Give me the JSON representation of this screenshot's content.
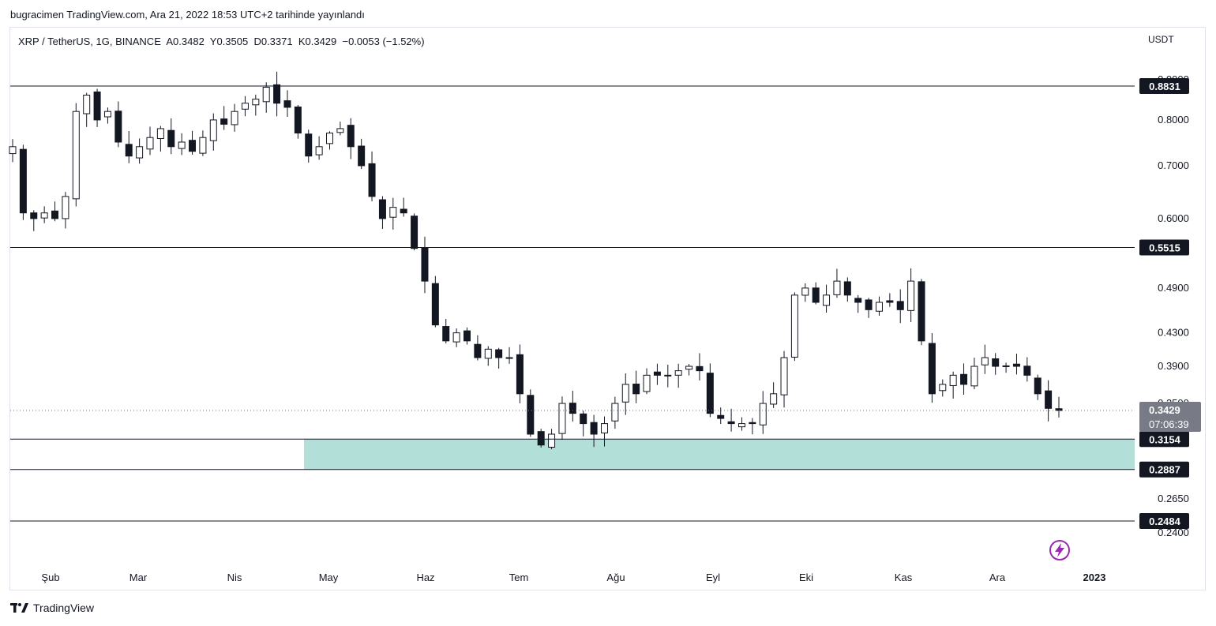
{
  "header": {
    "published": "bugracimen TradingView.com, Ara 21, 2022 18:53 UTC+2 tarihinde yayınlandı",
    "symbol_line": "XRP / TetherUS, 1G, BINANCE  A0.3482  Y0.3505  D0.3371  K0.3429  −0.0053 (−1.52%)",
    "currency": "USDT"
  },
  "footer": {
    "brand": "TradingView"
  },
  "colors": {
    "zone_fill": "#b2dfd8",
    "candle": "#131722",
    "background": "#ffffff",
    "last_price_bg": "#787b86",
    "level_label_bg": "#131722",
    "icon_accent": "#9c27b0"
  },
  "chart_data": {
    "type": "candlestick",
    "symbol": "XRP / TetherUS",
    "interval": "1G",
    "exchange": "BINANCE",
    "ohlc_last": {
      "open": 0.3482,
      "high": 0.3505,
      "low": 0.3371,
      "close": 0.3429,
      "change": -0.0053,
      "change_pct": -1.52
    },
    "y_axis": {
      "scale": "log",
      "range": [
        0.225,
        0.94
      ],
      "ticks": [
        "0.9000",
        "0.8000",
        "0.7000",
        "0.6000",
        "0.4900",
        "0.4300",
        "0.3900",
        "0.3500",
        "0.2650",
        "0.2400"
      ]
    },
    "x_axis": {
      "labels": [
        "Şub",
        "Mar",
        "Nis",
        "May",
        "Haz",
        "Tem",
        "Ağu",
        "Eyl",
        "Eki",
        "Kas",
        "Ara",
        "2023"
      ]
    },
    "horizontal_levels": [
      "0.8831",
      "0.5515",
      "0.3154",
      "0.2887",
      "0.2484"
    ],
    "zone": {
      "top": 0.3154,
      "bottom": 0.2887,
      "start": "May"
    },
    "last_price": {
      "price": "0.3429",
      "countdown": "07:06:39"
    },
    "closes_approx": [
      0.74,
      0.61,
      0.6,
      0.61,
      0.6,
      0.64,
      0.82,
      0.86,
      0.8,
      0.82,
      0.75,
      0.72,
      0.74,
      0.76,
      0.78,
      0.74,
      0.75,
      0.73,
      0.76,
      0.8,
      0.79,
      0.82,
      0.84,
      0.85,
      0.88,
      0.84,
      0.83,
      0.77,
      0.72,
      0.74,
      0.77,
      0.78,
      0.74,
      0.7,
      0.64,
      0.6,
      0.62,
      0.61,
      0.55,
      0.5,
      0.44,
      0.42,
      0.43,
      0.42,
      0.4,
      0.41,
      0.4,
      0.4,
      0.36,
      0.32,
      0.31,
      0.32,
      0.35,
      0.34,
      0.33,
      0.32,
      0.33,
      0.35,
      0.37,
      0.36,
      0.38,
      0.38,
      0.38,
      0.385,
      0.39,
      0.385,
      0.34,
      0.335,
      0.33,
      0.33,
      0.33,
      0.35,
      0.36,
      0.4,
      0.48,
      0.49,
      0.47,
      0.48,
      0.5,
      0.48,
      0.47,
      0.46,
      0.47,
      0.47,
      0.46,
      0.5,
      0.42,
      0.36,
      0.37,
      0.38,
      0.37,
      0.39,
      0.4,
      0.39,
      0.39,
      0.39,
      0.38,
      0.36,
      0.345,
      0.3429
    ]
  }
}
